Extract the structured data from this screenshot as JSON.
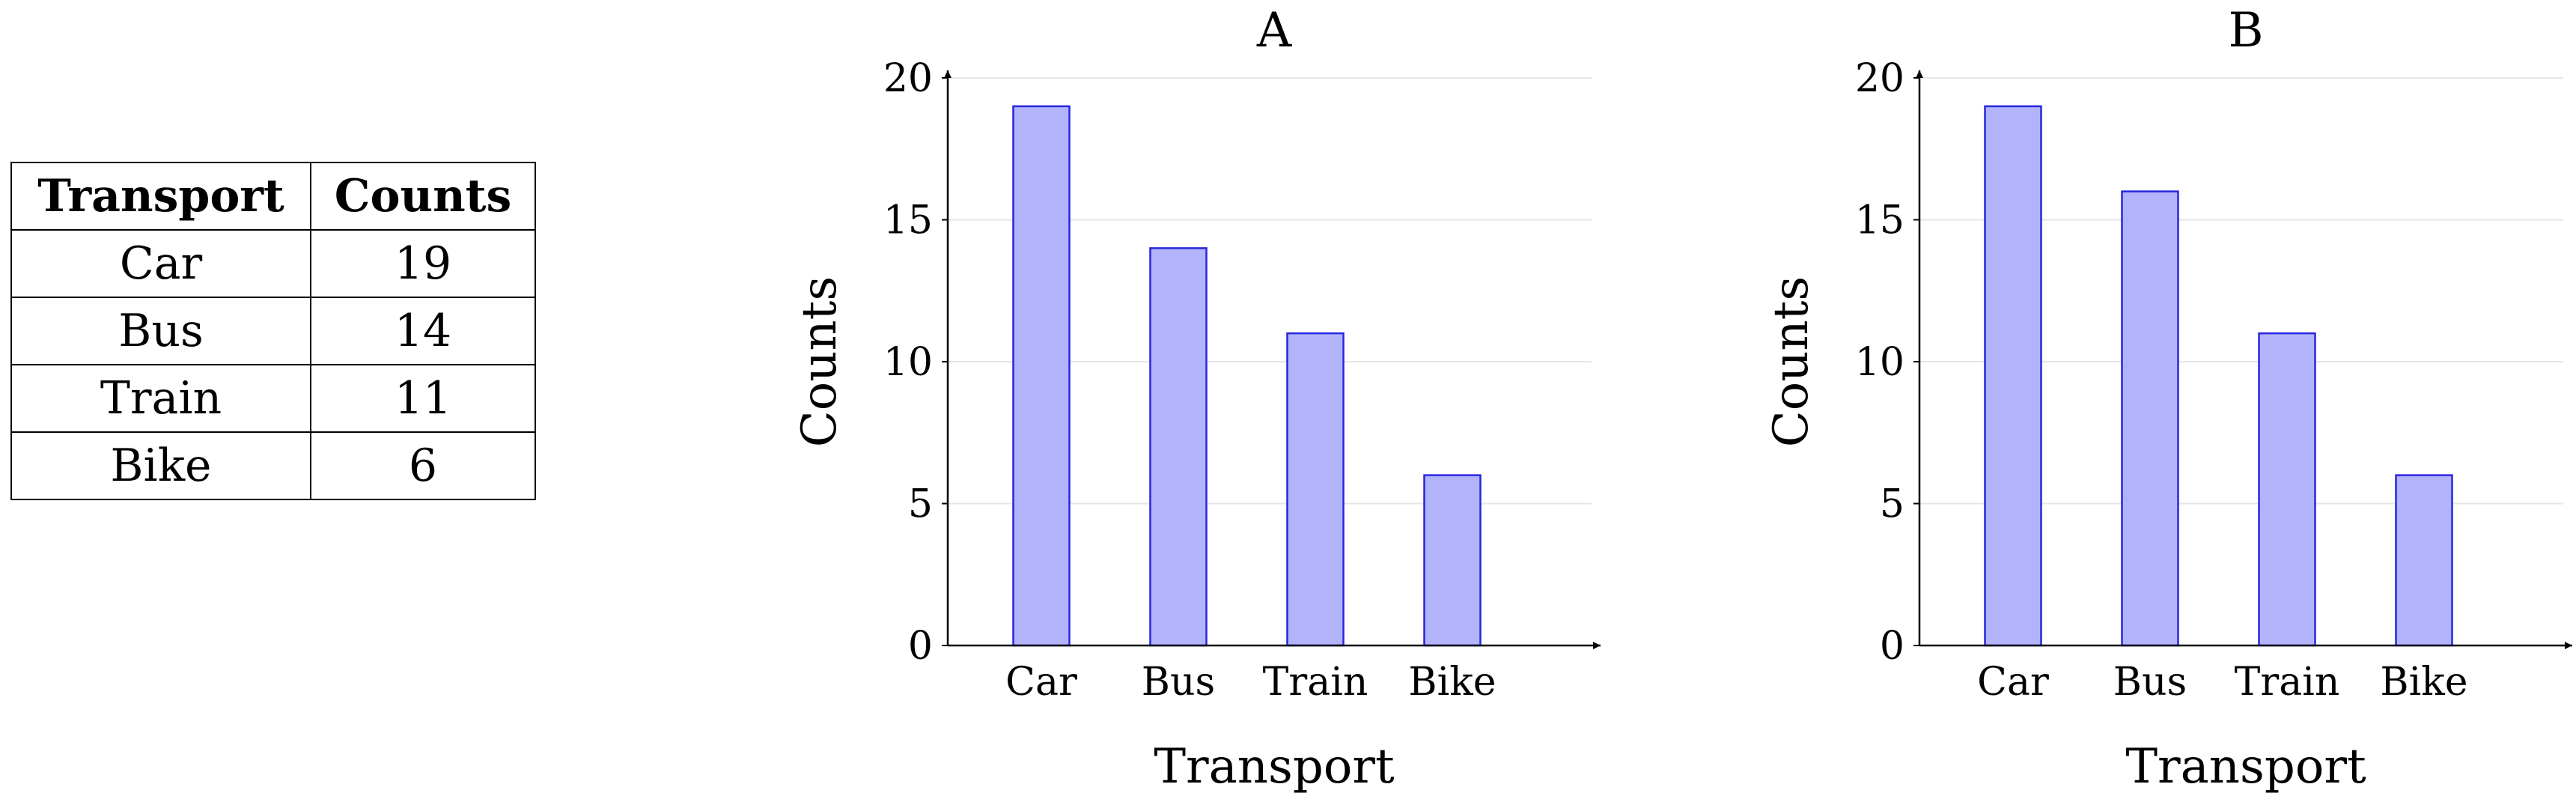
{
  "table": {
    "headers": [
      "Transport",
      "Counts"
    ],
    "rows": [
      {
        "transport": "Car",
        "count": "19"
      },
      {
        "transport": "Bus",
        "count": "14"
      },
      {
        "transport": "Train",
        "count": "11"
      },
      {
        "transport": "Bike",
        "count": "6"
      }
    ]
  },
  "colors": {
    "bar_fill": "#b3b3fc",
    "bar_stroke": "#2626e0",
    "grid": "#e6e6e6",
    "axis": "#000000"
  },
  "chart_data": [
    {
      "type": "bar",
      "title": "A",
      "categories": [
        "Car",
        "Bus",
        "Train",
        "Bike"
      ],
      "values": [
        19,
        14,
        11,
        6
      ],
      "xlabel": "Transport",
      "ylabel": "Counts",
      "ylim": [
        0,
        20
      ],
      "yticks": [
        "0",
        "5",
        "10",
        "15",
        "20"
      ],
      "grid": true
    },
    {
      "type": "bar",
      "title": "B",
      "categories": [
        "Car",
        "Bus",
        "Train",
        "Bike"
      ],
      "values": [
        19,
        16,
        11,
        6
      ],
      "xlabel": "Transport",
      "ylabel": "Counts",
      "ylim": [
        0,
        20
      ],
      "yticks": [
        "0",
        "5",
        "10",
        "15",
        "20"
      ],
      "grid": true
    }
  ]
}
